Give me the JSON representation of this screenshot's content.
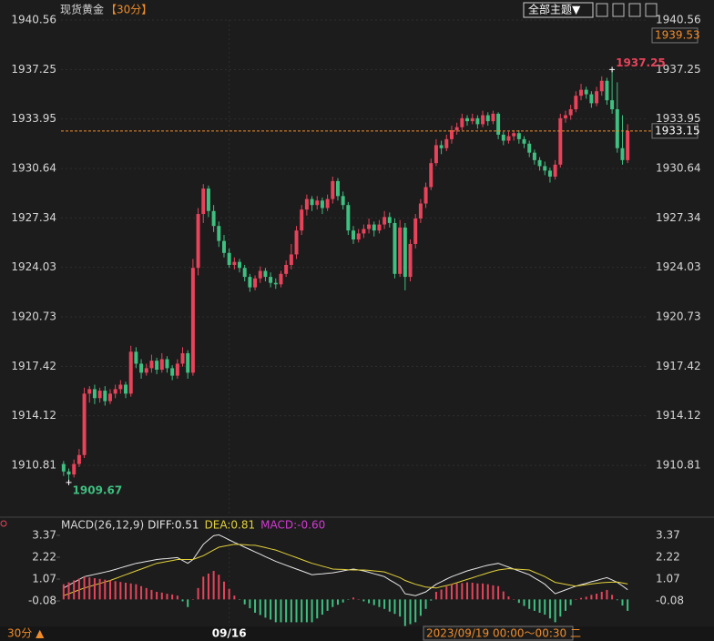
{
  "header": {
    "title": "现货黄金",
    "period": "【30分】",
    "theme_button": "全部主题▼"
  },
  "footer": {
    "period": "30分 ▲",
    "time": "2023/09/19 00:00～00:30 二"
  },
  "chart_data": [
    {
      "type": "candlestick",
      "up_color": "#e8435a",
      "down_color": "#3fbf80",
      "ylim": [
        1907.53,
        1940.56
      ],
      "yticks": [
        1940.56,
        1937.25,
        1933.95,
        1930.64,
        1927.34,
        1924.03,
        1920.73,
        1917.42,
        1914.12,
        1910.81
      ],
      "grid": true,
      "last_price": 1933.15,
      "price_markers": [
        1939.53
      ],
      "high_label": 1937.25,
      "low_label": 1909.67,
      "categories": [
        null,
        null,
        null,
        null,
        null,
        null,
        null,
        null,
        null,
        null,
        null,
        null,
        null,
        null,
        null,
        null,
        null,
        null,
        null,
        null,
        null,
        null,
        null,
        null,
        null,
        null,
        null,
        null,
        null,
        null,
        null,
        null,
        "09/16",
        null,
        null,
        null,
        null,
        null,
        null,
        null,
        null,
        null,
        null,
        null,
        null,
        null,
        null,
        null,
        null,
        null,
        null,
        null,
        null,
        null,
        null,
        null,
        null,
        null,
        null,
        null,
        null,
        null,
        null,
        null,
        null,
        null,
        null,
        null,
        null,
        null,
        null,
        null,
        null,
        null,
        null,
        null,
        null,
        null,
        null,
        null,
        null,
        null,
        null,
        null,
        null,
        null,
        null,
        null,
        null,
        null,
        null,
        null,
        null,
        null,
        null,
        null,
        null,
        null,
        null,
        null,
        null,
        null,
        null,
        null,
        null,
        null,
        null,
        null,
        null,
        null
      ],
      "ohlc": [
        [
          1910.9,
          1911.1,
          1910.1,
          1910.4
        ],
        [
          1910.4,
          1910.6,
          1909.67,
          1910.2
        ],
        [
          1910.2,
          1911.2,
          1910.0,
          1910.9
        ],
        [
          1910.9,
          1911.9,
          1910.7,
          1911.5
        ],
        [
          1911.5,
          1916.0,
          1911.3,
          1915.6
        ],
        [
          1915.6,
          1916.1,
          1915.0,
          1915.9
        ],
        [
          1915.9,
          1916.2,
          1914.9,
          1915.3
        ],
        [
          1915.3,
          1916.0,
          1915.0,
          1915.8
        ],
        [
          1915.8,
          1916.1,
          1914.8,
          1915.1
        ],
        [
          1915.1,
          1915.9,
          1914.9,
          1915.6
        ],
        [
          1915.6,
          1916.2,
          1915.3,
          1915.9
        ],
        [
          1915.9,
          1916.5,
          1915.6,
          1916.2
        ],
        [
          1916.2,
          1916.4,
          1915.3,
          1915.6
        ],
        [
          1915.6,
          1918.8,
          1915.4,
          1918.4
        ],
        [
          1918.4,
          1918.7,
          1917.3,
          1917.6
        ],
        [
          1917.6,
          1917.9,
          1916.6,
          1917.0
        ],
        [
          1917.0,
          1917.6,
          1916.8,
          1917.3
        ],
        [
          1917.3,
          1918.2,
          1917.0,
          1917.8
        ],
        [
          1917.8,
          1918.0,
          1916.9,
          1917.2
        ],
        [
          1917.2,
          1918.3,
          1917.0,
          1917.9
        ],
        [
          1917.9,
          1918.1,
          1917.0,
          1917.3
        ],
        [
          1917.3,
          1917.5,
          1916.5,
          1916.8
        ],
        [
          1916.8,
          1917.9,
          1916.6,
          1917.6
        ],
        [
          1917.6,
          1918.7,
          1917.4,
          1918.3
        ],
        [
          1918.3,
          1918.5,
          1916.6,
          1917.0
        ],
        [
          1917.0,
          1924.6,
          1916.8,
          1924.0
        ],
        [
          1924.0,
          1928.0,
          1923.5,
          1927.6
        ],
        [
          1927.6,
          1929.6,
          1927.0,
          1929.3
        ],
        [
          1929.3,
          1929.5,
          1927.4,
          1927.8
        ],
        [
          1927.8,
          1928.2,
          1926.4,
          1926.8
        ],
        [
          1926.8,
          1927.1,
          1925.4,
          1925.8
        ],
        [
          1925.8,
          1926.2,
          1924.7,
          1925.0
        ],
        [
          1925.0,
          1925.3,
          1924.0,
          1924.2
        ],
        [
          1924.2,
          1924.7,
          1923.9,
          1924.4
        ],
        [
          1924.4,
          1924.6,
          1923.7,
          1924.0
        ],
        [
          1924.0,
          1924.2,
          1923.1,
          1923.4
        ],
        [
          1923.4,
          1923.6,
          1922.4,
          1922.7
        ],
        [
          1922.7,
          1923.5,
          1922.5,
          1923.3
        ],
        [
          1923.3,
          1924.1,
          1923.0,
          1923.8
        ],
        [
          1923.8,
          1924.0,
          1923.1,
          1923.4
        ],
        [
          1923.4,
          1923.7,
          1922.7,
          1923.0
        ],
        [
          1923.0,
          1923.3,
          1922.6,
          1922.9
        ],
        [
          1922.9,
          1923.8,
          1922.7,
          1923.6
        ],
        [
          1923.6,
          1924.5,
          1923.4,
          1924.2
        ],
        [
          1924.2,
          1925.6,
          1923.9,
          1924.9
        ],
        [
          1924.9,
          1926.8,
          1924.6,
          1926.5
        ],
        [
          1926.5,
          1928.2,
          1926.2,
          1927.9
        ],
        [
          1927.9,
          1928.9,
          1927.5,
          1928.6
        ],
        [
          1928.6,
          1928.8,
          1927.8,
          1928.2
        ],
        [
          1928.2,
          1928.8,
          1927.9,
          1928.5
        ],
        [
          1928.5,
          1928.7,
          1927.6,
          1928.0
        ],
        [
          1928.0,
          1928.9,
          1927.8,
          1928.6
        ],
        [
          1928.6,
          1930.1,
          1928.3,
          1929.8
        ],
        [
          1929.8,
          1930.0,
          1928.5,
          1928.8
        ],
        [
          1928.8,
          1929.1,
          1927.9,
          1928.2
        ],
        [
          1928.2,
          1928.4,
          1926.2,
          1926.5
        ],
        [
          1926.5,
          1926.8,
          1925.6,
          1925.9
        ],
        [
          1925.9,
          1926.6,
          1925.7,
          1926.3
        ],
        [
          1926.3,
          1926.9,
          1926.0,
          1926.6
        ],
        [
          1926.6,
          1927.3,
          1926.3,
          1926.9
        ],
        [
          1926.9,
          1927.1,
          1926.1,
          1926.5
        ],
        [
          1926.5,
          1927.2,
          1926.3,
          1926.9
        ],
        [
          1926.9,
          1927.8,
          1926.6,
          1927.4
        ],
        [
          1927.4,
          1927.7,
          1926.7,
          1927.0
        ],
        [
          1927.0,
          1927.3,
          1923.3,
          1923.6
        ],
        [
          1923.6,
          1927.2,
          1923.4,
          1926.7
        ],
        [
          1926.7,
          1927.0,
          1922.5,
          1923.4
        ],
        [
          1923.4,
          1925.9,
          1923.1,
          1925.6
        ],
        [
          1925.6,
          1927.6,
          1925.3,
          1927.3
        ],
        [
          1927.3,
          1928.6,
          1927.0,
          1928.3
        ],
        [
          1928.3,
          1929.7,
          1928.0,
          1929.4
        ],
        [
          1929.4,
          1931.3,
          1929.2,
          1931.0
        ],
        [
          1931.0,
          1932.6,
          1930.8,
          1932.2
        ],
        [
          1932.2,
          1932.5,
          1931.6,
          1932.0
        ],
        [
          1932.0,
          1932.9,
          1931.8,
          1932.6
        ],
        [
          1932.6,
          1933.5,
          1932.3,
          1933.2
        ],
        [
          1933.2,
          1933.7,
          1932.9,
          1933.4
        ],
        [
          1933.4,
          1934.3,
          1933.2,
          1934.0
        ],
        [
          1934.0,
          1934.2,
          1933.5,
          1933.8
        ],
        [
          1933.8,
          1934.3,
          1933.6,
          1934.0
        ],
        [
          1934.0,
          1934.2,
          1933.3,
          1933.6
        ],
        [
          1933.6,
          1934.5,
          1933.4,
          1934.2
        ],
        [
          1934.2,
          1934.4,
          1933.5,
          1933.8
        ],
        [
          1933.8,
          1934.5,
          1933.6,
          1934.3
        ],
        [
          1934.3,
          1934.4,
          1932.6,
          1932.9
        ],
        [
          1932.9,
          1933.1,
          1932.2,
          1932.5
        ],
        [
          1932.5,
          1933.1,
          1932.3,
          1932.8
        ],
        [
          1932.8,
          1933.2,
          1932.5,
          1933.0
        ],
        [
          1933.0,
          1933.2,
          1932.3,
          1932.6
        ],
        [
          1932.6,
          1932.8,
          1932.0,
          1932.3
        ],
        [
          1932.3,
          1932.5,
          1931.4,
          1931.7
        ],
        [
          1931.7,
          1931.9,
          1930.9,
          1931.2
        ],
        [
          1931.2,
          1931.4,
          1930.5,
          1930.8
        ],
        [
          1930.8,
          1931.1,
          1930.2,
          1930.5
        ],
        [
          1930.5,
          1930.7,
          1929.7,
          1930.1
        ],
        [
          1930.1,
          1931.2,
          1929.9,
          1930.9
        ],
        [
          1930.9,
          1934.3,
          1930.7,
          1934.0
        ],
        [
          1934.0,
          1934.5,
          1933.7,
          1934.2
        ],
        [
          1934.2,
          1934.9,
          1933.9,
          1934.6
        ],
        [
          1934.6,
          1935.8,
          1934.4,
          1935.5
        ],
        [
          1935.5,
          1936.3,
          1935.2,
          1935.9
        ],
        [
          1935.9,
          1936.1,
          1935.3,
          1935.6
        ],
        [
          1935.6,
          1935.8,
          1934.7,
          1935.0
        ],
        [
          1935.0,
          1936.1,
          1934.8,
          1935.8
        ],
        [
          1935.8,
          1936.8,
          1935.5,
          1936.5
        ],
        [
          1936.5,
          1936.7,
          1934.9,
          1935.2
        ],
        [
          1935.2,
          1937.25,
          1934.3,
          1934.6
        ],
        [
          1934.6,
          1936.4,
          1931.7,
          1932.0
        ],
        [
          1932.0,
          1934.2,
          1930.9,
          1931.2
        ],
        [
          1931.2,
          1933.6,
          1931.0,
          1933.15
        ]
      ]
    },
    {
      "type": "macd",
      "title": "MACD(26,12,9)",
      "ylim": [
        -1.42,
        3.61
      ],
      "yticks": [
        3.37,
        2.22,
        1.07,
        -0.08
      ],
      "series": [
        {
          "label": "DIFF:0.51",
          "color": "#e6e6e6",
          "values": [
            0.6,
            0.75,
            0.9,
            1.05,
            1.2,
            1.26,
            1.32,
            1.38,
            1.44,
            1.5,
            1.58,
            1.66,
            1.74,
            1.82,
            1.9,
            1.95,
            2.0,
            2.05,
            2.1,
            2.13,
            2.15,
            2.18,
            2.2,
            2.05,
            1.9,
            2.1,
            2.5,
            2.9,
            3.13,
            3.35,
            3.4,
            3.27,
            3.13,
            3.0,
            2.88,
            2.75,
            2.63,
            2.5,
            2.38,
            2.25,
            2.13,
            2.0,
            1.9,
            1.8,
            1.7,
            1.6,
            1.5,
            1.4,
            1.3,
            1.33,
            1.35,
            1.38,
            1.4,
            1.45,
            1.5,
            1.55,
            1.6,
            1.55,
            1.5,
            1.43,
            1.35,
            1.28,
            1.2,
            1.03,
            0.87,
            0.7,
            0.3,
            0.25,
            0.2,
            0.3,
            0.4,
            0.6,
            0.8,
            0.93,
            1.07,
            1.2,
            1.3,
            1.4,
            1.5,
            1.58,
            1.65,
            1.73,
            1.8,
            1.85,
            1.9,
            1.8,
            1.7,
            1.6,
            1.5,
            1.4,
            1.3,
            1.13,
            0.97,
            0.8,
            0.55,
            0.3,
            0.4,
            0.5,
            0.6,
            0.7,
            0.78,
            0.85,
            0.93,
            1.0,
            1.08,
            1.15,
            1.03,
            0.9,
            0.71,
            0.51
          ]
        },
        {
          "label": "DEA:0.81",
          "color": "#e3d13c",
          "values": [
            0.2,
            0.3,
            0.4,
            0.5,
            0.6,
            0.68,
            0.76,
            0.84,
            0.92,
            1.0,
            1.1,
            1.2,
            1.3,
            1.4,
            1.5,
            1.6,
            1.7,
            1.8,
            1.9,
            1.95,
            2.0,
            2.05,
            2.1,
            2.1,
            2.1,
            2.1,
            2.2,
            2.3,
            2.45,
            2.6,
            2.75,
            2.8,
            2.85,
            2.9,
            2.89,
            2.88,
            2.86,
            2.85,
            2.79,
            2.73,
            2.66,
            2.6,
            2.5,
            2.4,
            2.3,
            2.2,
            2.1,
            2.0,
            1.9,
            1.83,
            1.75,
            1.68,
            1.6,
            1.59,
            1.58,
            1.56,
            1.55,
            1.55,
            1.55,
            1.53,
            1.5,
            1.48,
            1.45,
            1.35,
            1.25,
            1.15,
            1.0,
            0.9,
            0.8,
            0.73,
            0.65,
            0.63,
            0.6,
            0.67,
            0.73,
            0.8,
            0.88,
            0.97,
            1.05,
            1.14,
            1.23,
            1.31,
            1.4,
            1.48,
            1.55,
            1.59,
            1.62,
            1.6,
            1.59,
            1.57,
            1.55,
            1.43,
            1.32,
            1.2,
            1.05,
            0.9,
            0.85,
            0.8,
            0.75,
            0.7,
            0.74,
            0.78,
            0.81,
            0.85,
            0.88,
            0.9,
            0.91,
            0.92,
            0.87,
            0.81
          ]
        },
        {
          "label": "MACD:-0.60",
          "color": "#d23ad2",
          "up_color": "#e8435a",
          "down_color": "#3fbf80",
          "values": [
            0.8,
            0.9,
            1.0,
            1.1,
            1.2,
            1.16,
            1.12,
            1.08,
            1.04,
            1.0,
            0.96,
            0.92,
            0.88,
            0.84,
            0.8,
            0.7,
            0.6,
            0.5,
            0.4,
            0.36,
            0.3,
            0.26,
            0.2,
            -0.1,
            -0.4,
            0,
            0.6,
            1.2,
            1.36,
            1.5,
            1.3,
            0.94,
            0.56,
            0.2,
            -0.02,
            -0.26,
            -0.46,
            -0.7,
            -0.82,
            -0.96,
            -1.06,
            -1.2,
            -1.2,
            -1.2,
            -1.2,
            -1.2,
            -1.2,
            -1.2,
            -1.2,
            -1.0,
            -0.8,
            -0.6,
            -0.4,
            -0.28,
            -0.16,
            -0.02,
            0.1,
            0,
            -0.1,
            -0.2,
            -0.3,
            -0.4,
            -0.5,
            -0.64,
            -0.76,
            -0.9,
            -1.4,
            -1.3,
            -1.2,
            -0.86,
            -0.5,
            -0.06,
            0.4,
            0.52,
            0.68,
            0.8,
            0.84,
            0.86,
            0.9,
            0.88,
            0.84,
            0.84,
            0.8,
            0.74,
            0.7,
            0.42,
            0.16,
            0,
            -0.18,
            -0.34,
            -0.5,
            -0.6,
            -0.7,
            -0.8,
            -1.0,
            -1.2,
            -0.9,
            -0.6,
            -0.3,
            0,
            0.08,
            0.14,
            0.24,
            0.3,
            0.4,
            0.5,
            0.24,
            -0.04,
            -0.32,
            -0.6
          ]
        }
      ]
    }
  ]
}
